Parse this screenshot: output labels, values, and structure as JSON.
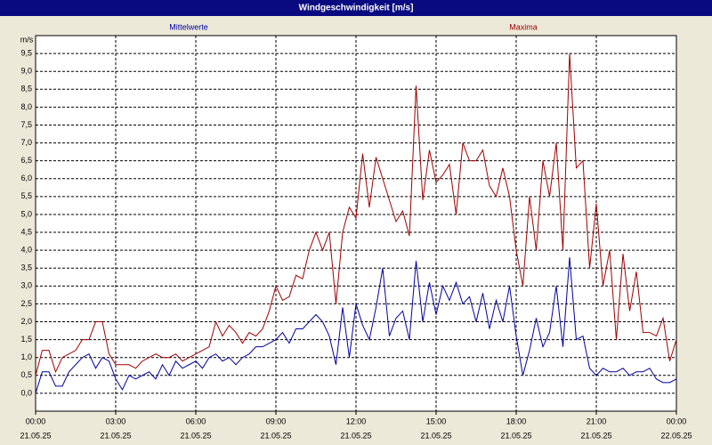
{
  "chart_data": {
    "type": "line",
    "title": "Windgeschwindigkeit [m/s]",
    "y_unit": "m/s",
    "x": [
      0,
      0.25,
      0.5,
      0.75,
      1,
      1.25,
      1.5,
      1.75,
      2,
      2.25,
      2.5,
      2.75,
      3,
      3.25,
      3.5,
      3.75,
      4,
      4.25,
      4.5,
      4.75,
      5,
      5.25,
      5.5,
      5.75,
      6,
      6.25,
      6.5,
      6.75,
      7,
      7.25,
      7.5,
      7.75,
      8,
      8.25,
      8.5,
      8.75,
      9,
      9.25,
      9.5,
      9.75,
      10,
      10.25,
      10.5,
      10.75,
      11,
      11.25,
      11.5,
      11.75,
      12,
      12.25,
      12.5,
      12.75,
      13,
      13.25,
      13.5,
      13.75,
      14,
      14.25,
      14.5,
      14.75,
      15,
      15.25,
      15.5,
      15.75,
      16,
      16.25,
      16.5,
      16.75,
      17,
      17.25,
      17.5,
      17.75,
      18,
      18.25,
      18.5,
      18.75,
      19,
      19.25,
      19.5,
      19.75,
      20,
      20.25,
      20.5,
      20.75,
      21,
      21.25,
      21.5,
      21.75,
      22,
      22.25,
      22.5,
      22.75,
      23,
      23.25,
      23.5,
      23.75,
      24
    ],
    "series": [
      {
        "name": "Mittelwerte",
        "color": "#0000a0",
        "values": [
          0.0,
          0.6,
          0.6,
          0.2,
          0.2,
          0.6,
          0.8,
          1.0,
          1.1,
          0.7,
          1.0,
          0.9,
          0.4,
          0.1,
          0.5,
          0.4,
          0.5,
          0.6,
          0.4,
          0.8,
          0.5,
          0.9,
          0.7,
          0.8,
          0.9,
          0.7,
          1.0,
          1.1,
          0.9,
          1.0,
          0.8,
          1.0,
          1.1,
          1.3,
          1.3,
          1.4,
          1.5,
          1.7,
          1.4,
          1.8,
          1.8,
          2.0,
          2.2,
          2.0,
          1.6,
          0.8,
          2.4,
          1.0,
          2.5,
          1.9,
          1.5,
          2.4,
          3.5,
          1.6,
          2.1,
          2.3,
          1.5,
          3.7,
          2.0,
          3.1,
          2.2,
          3.0,
          2.6,
          3.1,
          2.5,
          2.7,
          2.0,
          2.8,
          1.8,
          2.6,
          2.0,
          3.0,
          1.6,
          0.5,
          1.2,
          2.1,
          1.3,
          1.7,
          3.0,
          1.3,
          3.8,
          1.5,
          1.6,
          0.7,
          0.5,
          0.7,
          0.6,
          0.6,
          0.7,
          0.5,
          0.6,
          0.6,
          0.7,
          0.4,
          0.3,
          0.3,
          0.4
        ]
      },
      {
        "name": "Maxima",
        "color": "#a00000",
        "values": [
          0.5,
          1.2,
          1.2,
          0.6,
          1.0,
          1.1,
          1.2,
          1.5,
          1.5,
          2.0,
          2.0,
          1.1,
          0.8,
          0.8,
          0.8,
          0.7,
          0.9,
          1.0,
          1.1,
          1.0,
          1.0,
          1.1,
          0.9,
          1.0,
          1.1,
          1.2,
          1.3,
          2.0,
          1.6,
          1.9,
          1.7,
          1.4,
          1.7,
          1.6,
          1.8,
          2.3,
          3.0,
          2.6,
          2.7,
          3.3,
          3.2,
          4.0,
          4.5,
          4.0,
          4.5,
          2.5,
          4.5,
          5.2,
          4.9,
          6.7,
          5.2,
          6.6,
          6.0,
          5.4,
          4.8,
          5.1,
          4.4,
          8.6,
          5.4,
          6.8,
          5.9,
          6.1,
          6.4,
          5.0,
          7.0,
          6.5,
          6.5,
          6.8,
          5.8,
          5.5,
          6.3,
          5.5,
          4.0,
          3.0,
          5.5,
          4.0,
          6.5,
          5.5,
          7.0,
          4.0,
          9.5,
          6.3,
          6.5,
          3.5,
          5.3,
          3.0,
          4.0,
          1.5,
          3.9,
          2.3,
          3.4,
          1.7,
          1.7,
          1.6,
          2.1,
          0.9,
          1.5
        ]
      }
    ],
    "xlim": [
      0,
      24
    ],
    "xticks": [
      {
        "value": 0,
        "label": "00:00",
        "date": "21.05.25"
      },
      {
        "value": 3,
        "label": "03:00",
        "date": "21.05.25"
      },
      {
        "value": 6,
        "label": "06:00",
        "date": "21.05.25"
      },
      {
        "value": 9,
        "label": "09:00",
        "date": "21.05.25"
      },
      {
        "value": 12,
        "label": "12:00",
        "date": "21.05.25"
      },
      {
        "value": 15,
        "label": "15:00",
        "date": "21.05.25"
      },
      {
        "value": 18,
        "label": "18:00",
        "date": "21.05.25"
      },
      {
        "value": 21,
        "label": "21:00",
        "date": "21.05.25"
      },
      {
        "value": 24,
        "label": "00:00",
        "date": "22.05.25"
      }
    ],
    "ylim": [
      -0.5,
      10
    ],
    "yticks": [
      {
        "value": 0,
        "label": "0,0"
      },
      {
        "value": 0.5,
        "label": "0,5"
      },
      {
        "value": 1,
        "label": "1,0"
      },
      {
        "value": 1.5,
        "label": "1,5"
      },
      {
        "value": 2,
        "label": "2,0"
      },
      {
        "value": 2.5,
        "label": "2,5"
      },
      {
        "value": 3,
        "label": "3,0"
      },
      {
        "value": 3.5,
        "label": "3,5"
      },
      {
        "value": 4,
        "label": "4,0"
      },
      {
        "value": 4.5,
        "label": "4,5"
      },
      {
        "value": 5,
        "label": "5,0"
      },
      {
        "value": 5.5,
        "label": "5,5"
      },
      {
        "value": 6,
        "label": "6,0"
      },
      {
        "value": 6.5,
        "label": "6,5"
      },
      {
        "value": 7,
        "label": "7,0"
      },
      {
        "value": 7.5,
        "label": "7,5"
      },
      {
        "value": 8,
        "label": "8,0"
      },
      {
        "value": 8.5,
        "label": "8,5"
      },
      {
        "value": 9,
        "label": "9,0"
      },
      {
        "value": 9.5,
        "label": "9,5"
      }
    ],
    "grid": true
  }
}
